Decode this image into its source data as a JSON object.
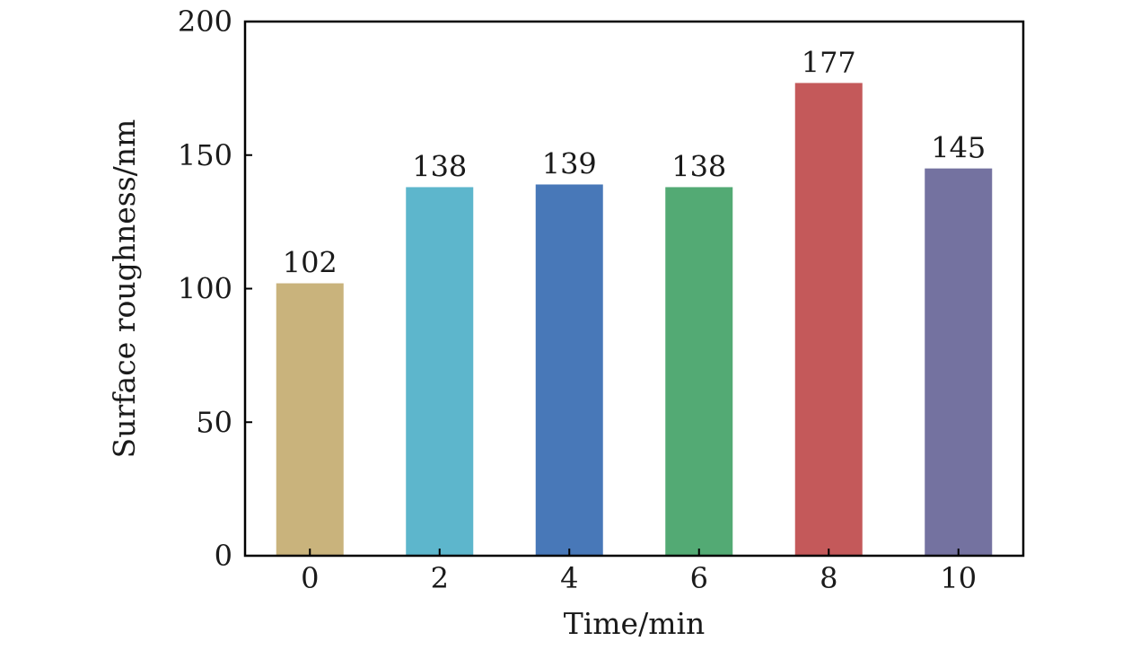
{
  "chart_data": {
    "type": "bar",
    "categories": [
      "0",
      "2",
      "4",
      "6",
      "8",
      "10"
    ],
    "values": [
      102,
      138,
      139,
      138,
      177,
      145
    ],
    "data_labels": [
      "102",
      "138",
      "139",
      "138",
      "177",
      "145"
    ],
    "colors": [
      "#c9b37c",
      "#5db6cc",
      "#4878b8",
      "#53aa74",
      "#c4595a",
      "#7472a0"
    ],
    "title": "",
    "xlabel": "Time/min",
    "ylabel": "Surface roughness/nm",
    "ylim": [
      0,
      200
    ],
    "yticks": [
      0,
      50,
      100,
      150,
      200
    ],
    "ytick_labels": [
      "0",
      "50",
      "100",
      "150",
      "200"
    ],
    "grid": false,
    "legend": "none"
  }
}
